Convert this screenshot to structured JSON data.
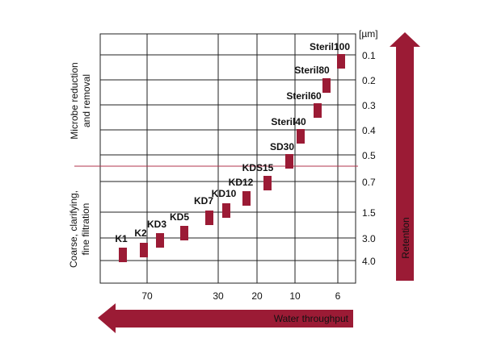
{
  "chart_data": {
    "type": "scatter",
    "title": "",
    "xlabel": "Water throughput",
    "ylabel": "Retention",
    "y_unit": "[µm]",
    "x_ticks": [
      "70",
      "30",
      "20",
      "10",
      "6"
    ],
    "y_ticks": [
      "0.1",
      "0.2",
      "0.3",
      "0.4",
      "0.5",
      "0.7",
      "1.5",
      "3.0",
      "4.0"
    ],
    "regions": [
      {
        "label": "Microbe reduction and removal",
        "from": "0.1",
        "to": "0.5"
      },
      {
        "label": "Coarse, clarifying, fine filtration",
        "from": "0.7",
        "to": "4.0"
      }
    ],
    "grid": true,
    "points": [
      {
        "name": "K1",
        "x": 95,
        "y": "4.0"
      },
      {
        "name": "K2",
        "x": 80,
        "y": "3.5"
      },
      {
        "name": "KD3",
        "x": 68,
        "y": "3.0"
      },
      {
        "name": "KD5",
        "x": 50,
        "y": "2.5"
      },
      {
        "name": "KD7",
        "x": 33,
        "y": "1.5"
      },
      {
        "name": "KD10",
        "x": 28,
        "y": "1.2"
      },
      {
        "name": "KD12",
        "x": 22,
        "y": "0.9"
      },
      {
        "name": "KDS15",
        "x": 17,
        "y": "0.7"
      },
      {
        "name": "SD30",
        "x": 11,
        "y": "0.5"
      },
      {
        "name": "Steril40",
        "x": 9,
        "y": "0.4"
      },
      {
        "name": "Steril60",
        "x": 7,
        "y": "0.3"
      },
      {
        "name": "Steril80",
        "x": 6.5,
        "y": "0.2"
      },
      {
        "name": "Steril100",
        "x": 5.5,
        "y": "0.1"
      }
    ],
    "colors": {
      "marker": "#9b1b35",
      "region_text": "#a3283f",
      "arrow": "#9b1b35",
      "grid": "#222222",
      "divider": "#b2344c"
    }
  }
}
